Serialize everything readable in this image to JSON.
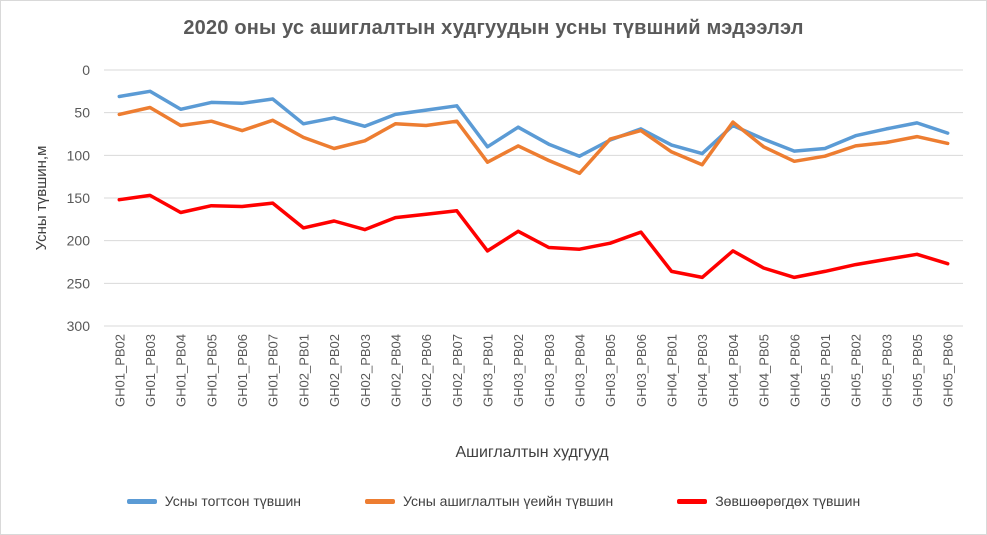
{
  "chart_data": {
    "type": "line",
    "title": "2020 оны ус ашиглалтын худгуудын усны түвшний мэдээлэл",
    "xlabel": "Ашиглалтын худгууд",
    "ylabel": "Усны түвшин,м",
    "ylim": [
      0,
      300
    ],
    "y_reversed": true,
    "y_ticks": [
      0,
      50,
      100,
      150,
      200,
      250,
      300
    ],
    "grid": true,
    "legend_position": "bottom",
    "categories": [
      "GH01_PB02",
      "GH01_PB03",
      "GH01_PB04",
      "GH01_PB05",
      "GH01_PB06",
      "GH01_PB07",
      "GH02_PB01",
      "GH02_PB02",
      "GH02_PB03",
      "GH02_PB04",
      "GH02_PB06",
      "GH02_PB07",
      "GH03_PB01",
      "GH03_PB02",
      "GH03_PB03",
      "GH03_PB04",
      "GH03_PB05",
      "GH03_PB06",
      "GH04_PB01",
      "GH04_PB03",
      "GH04_PB04",
      "GH04_PB05",
      "GH04_PB06",
      "GH05_PB01",
      "GH05_PB02",
      "GH05_PB03",
      "GH05_PB05",
      "GH05_PB06"
    ],
    "series": [
      {
        "name": "Усны тогтсон түвшин",
        "color": "#5b9bd5",
        "values": [
          31,
          25,
          46,
          38,
          39,
          34,
          63,
          56,
          66,
          52,
          47,
          42,
          90,
          67,
          87,
          101,
          82,
          69,
          88,
          98,
          65,
          81,
          95,
          92,
          77,
          69,
          62,
          74
        ]
      },
      {
        "name": "Усны ашиглалтын үеийн түвшин",
        "color": "#ed7d31",
        "values": [
          52,
          44,
          65,
          60,
          71,
          59,
          79,
          92,
          83,
          63,
          65,
          60,
          108,
          89,
          106,
          121,
          81,
          71,
          96,
          111,
          61,
          90,
          107,
          101,
          89,
          85,
          78,
          86
        ]
      },
      {
        "name": "Зөвшөөрөгдөх түвшин",
        "color": "#ff0000",
        "values": [
          152,
          147,
          167,
          159,
          160,
          156,
          185,
          177,
          187,
          173,
          169,
          165,
          212,
          189,
          208,
          210,
          203,
          190,
          236,
          243,
          212,
          232,
          243,
          236,
          228,
          222,
          216,
          227
        ]
      }
    ]
  }
}
